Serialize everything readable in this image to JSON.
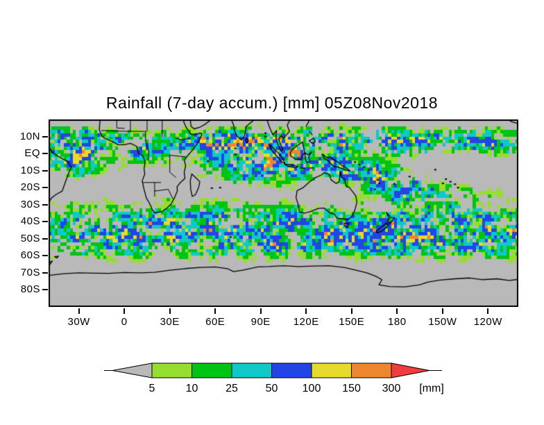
{
  "title": "Rainfall (7-day accum.) [mm] 05Z08Nov2018",
  "chart_data": {
    "type": "heatmap",
    "title": "Rainfall (7-day accum.) [mm] 05Z08Nov2018",
    "variable": "Rainfall (7-day accum.)",
    "units": "mm",
    "valid_time": "05Z08Nov2018",
    "projection": "latlon",
    "lon_range_deg_east": [
      -50,
      260
    ],
    "lat_range_deg_north": [
      20,
      -90
    ],
    "grid_on": false,
    "levels_mm": [
      5,
      10,
      25,
      50,
      100,
      150,
      300
    ],
    "colorbar_labels": [
      "5",
      "10",
      "25",
      "50",
      "100",
      "150",
      "300"
    ],
    "colorbar_units_label": "[mm]",
    "palette": {
      "background_below_min": "#b9b9b9",
      "bin_colors": [
        "#97dd30",
        "#00c414",
        "#10c8c8",
        "#2245e6",
        "#e6da2e",
        "#ee8630"
      ],
      "above_max": "#f03c3c",
      "coastline": "#000000",
      "frame": "#000000"
    },
    "lat_ticks": [
      {
        "label": "10N",
        "deg": 10
      },
      {
        "label": "EQ",
        "deg": 0
      },
      {
        "label": "10S",
        "deg": -10
      },
      {
        "label": "20S",
        "deg": -20
      },
      {
        "label": "30S",
        "deg": -30
      },
      {
        "label": "40S",
        "deg": -40
      },
      {
        "label": "50S",
        "deg": -50
      },
      {
        "label": "60S",
        "deg": -60
      },
      {
        "label": "70S",
        "deg": -70
      },
      {
        "label": "80S",
        "deg": -80
      }
    ],
    "lon_ticks": [
      {
        "label": "30W",
        "deg": -30
      },
      {
        "label": "0",
        "deg": 0
      },
      {
        "label": "30E",
        "deg": 30
      },
      {
        "label": "60E",
        "deg": 60
      },
      {
        "label": "90E",
        "deg": 90
      },
      {
        "label": "120E",
        "deg": 120
      },
      {
        "label": "150E",
        "deg": 150
      },
      {
        "label": "180",
        "deg": 180
      },
      {
        "label": "150W",
        "deg": 210
      },
      {
        "label": "120W",
        "deg": 240
      }
    ],
    "notable_features": [
      "ITCZ rain band near 5-10N across all longitudes",
      "Heavy (150-300+ mm) core over central/eastern Indian Ocean near 80-100E, 0-10S",
      "Orange SPCZ band from 150E,8S sloping to 150W,30S",
      "Southern-ocean storm-track rain 35S-60S with yellow/orange cores southeast of New Zealand",
      "Dry gray subtropics and gray south of about 62S with Antarctic coastline"
    ]
  }
}
